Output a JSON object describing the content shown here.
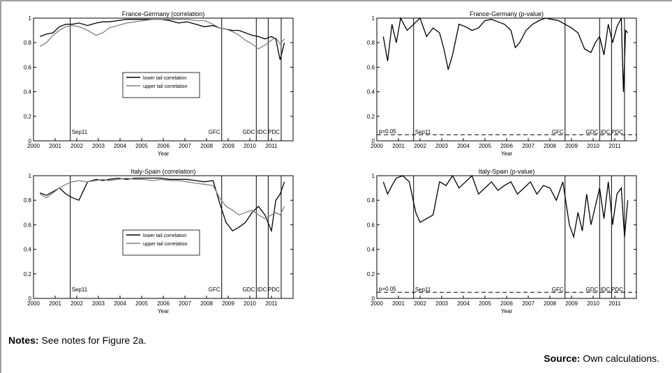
{
  "notes": {
    "label": "Notes:",
    "text": " See notes for Figure 2a."
  },
  "source": {
    "label": "Source:",
    "text": " Own calculations."
  },
  "chart_data": [
    {
      "type": "line",
      "title": "France-Germany (correlation)",
      "xlabel": "Year",
      "xlim": [
        2000,
        2012
      ],
      "ylim": [
        0,
        1
      ],
      "xticks": [
        2000,
        2001,
        2002,
        2003,
        2004,
        2005,
        2006,
        2007,
        2008,
        2009,
        2010,
        2011
      ],
      "yticks": [
        0,
        0.2,
        0.4,
        0.6,
        0.8,
        1
      ],
      "legend": "center",
      "events": [
        {
          "label": "Sep11",
          "x": 2001.7
        },
        {
          "label": "GFC",
          "x": 2008.7
        },
        {
          "label": "GDC",
          "x": 2010.3
        },
        {
          "label": "IDC",
          "x": 2010.85
        },
        {
          "label": "PDC",
          "x": 2011.45
        }
      ],
      "series": [
        {
          "name": "lower tail correlation",
          "color": "#000000",
          "x": [
            2000.3,
            2000.6,
            2000.9,
            2001.2,
            2001.5,
            2001.8,
            2002.1,
            2002.5,
            2002.9,
            2003.2,
            2003.5,
            2003.9,
            2004.3,
            2004.7,
            2005.1,
            2005.5,
            2005.9,
            2006.3,
            2006.7,
            2007.1,
            2007.5,
            2007.9,
            2008.3,
            2008.6,
            2008.9,
            2009.2,
            2009.5,
            2009.8,
            2010.1,
            2010.4,
            2010.7,
            2011.0,
            2011.2,
            2011.4,
            2011.6
          ],
          "y": [
            0.85,
            0.87,
            0.88,
            0.93,
            0.95,
            0.95,
            0.96,
            0.94,
            0.96,
            0.97,
            0.97,
            0.98,
            0.99,
            0.99,
            0.99,
            0.99,
            0.99,
            0.98,
            0.96,
            0.97,
            0.95,
            0.93,
            0.94,
            0.92,
            0.91,
            0.9,
            0.9,
            0.88,
            0.86,
            0.85,
            0.83,
            0.85,
            0.83,
            0.66,
            0.8
          ]
        },
        {
          "name": "upper tail correlation",
          "color": "#808080",
          "x": [
            2000.3,
            2000.6,
            2000.9,
            2001.2,
            2001.5,
            2001.8,
            2002.1,
            2002.5,
            2002.9,
            2003.2,
            2003.5,
            2003.9,
            2004.3,
            2004.7,
            2005.1,
            2005.5,
            2005.9,
            2006.3,
            2006.7,
            2007.1,
            2007.5,
            2007.9,
            2008.3,
            2008.6,
            2008.9,
            2009.2,
            2009.5,
            2009.8,
            2010.1,
            2010.4,
            2010.7,
            2011.0,
            2011.2,
            2011.4,
            2011.6
          ],
          "y": [
            0.77,
            0.8,
            0.86,
            0.9,
            0.93,
            0.94,
            0.93,
            0.9,
            0.86,
            0.88,
            0.92,
            0.94,
            0.96,
            0.97,
            0.98,
            0.99,
            0.99,
            0.99,
            0.99,
            0.99,
            0.98,
            0.98,
            0.95,
            0.92,
            0.91,
            0.89,
            0.86,
            0.82,
            0.79,
            0.75,
            0.78,
            0.82,
            0.84,
            0.79,
            0.83
          ]
        }
      ]
    },
    {
      "type": "line",
      "title": "France-Germany (p-value)",
      "xlabel": "Year",
      "xlim": [
        2000,
        2012
      ],
      "ylim": [
        0,
        1
      ],
      "xticks": [
        2000,
        2001,
        2002,
        2003,
        2004,
        2005,
        2006,
        2007,
        2008,
        2009,
        2010,
        2011
      ],
      "yticks": [
        0,
        0.2,
        0.4,
        0.6,
        0.8,
        1
      ],
      "threshold": {
        "label": "p=0.05",
        "y": 0.05
      },
      "events": [
        {
          "label": "Sep11",
          "x": 2001.7
        },
        {
          "label": "GFC",
          "x": 2008.7
        },
        {
          "label": "GDC",
          "x": 2010.3
        },
        {
          "label": "IDC",
          "x": 2010.85
        },
        {
          "label": "PDC",
          "x": 2011.45
        }
      ],
      "series": [
        {
          "name": "",
          "color": "#000000",
          "x": [
            2000.3,
            2000.5,
            2000.7,
            2000.9,
            2001.1,
            2001.4,
            2001.7,
            2002.0,
            2002.3,
            2002.6,
            2002.9,
            2003.1,
            2003.3,
            2003.5,
            2003.8,
            2004.1,
            2004.4,
            2004.7,
            2005.0,
            2005.3,
            2005.6,
            2005.9,
            2006.2,
            2006.4,
            2006.6,
            2006.9,
            2007.2,
            2007.5,
            2007.8,
            2008.1,
            2008.4,
            2008.7,
            2009.0,
            2009.3,
            2009.6,
            2009.9,
            2010.1,
            2010.3,
            2010.5,
            2010.7,
            2010.9,
            2011.1,
            2011.3,
            2011.4,
            2011.5,
            2011.6
          ],
          "y": [
            0.85,
            0.65,
            0.95,
            0.8,
            1.0,
            0.9,
            0.95,
            1.0,
            0.85,
            0.92,
            0.88,
            0.75,
            0.58,
            0.7,
            0.95,
            0.93,
            0.9,
            0.92,
            0.98,
            0.99,
            0.97,
            0.95,
            0.9,
            0.76,
            0.8,
            0.9,
            0.95,
            0.98,
            1.0,
            0.99,
            0.98,
            0.95,
            0.92,
            0.88,
            0.75,
            0.72,
            0.8,
            0.85,
            0.7,
            0.95,
            0.8,
            0.93,
            1.0,
            0.4,
            0.9,
            0.88
          ]
        }
      ]
    },
    {
      "type": "line",
      "title": "Italy-Spain (correlation)",
      "xlabel": "Year",
      "xlim": [
        2000,
        2012
      ],
      "ylim": [
        0,
        1
      ],
      "xticks": [
        2000,
        2001,
        2002,
        2003,
        2004,
        2005,
        2006,
        2007,
        2008,
        2009,
        2010,
        2011
      ],
      "yticks": [
        0,
        0.2,
        0.4,
        0.6,
        0.8,
        1
      ],
      "legend": "center",
      "events": [
        {
          "label": "Sep11",
          "x": 2001.7
        },
        {
          "label": "GFC",
          "x": 2008.7
        },
        {
          "label": "GDC",
          "x": 2010.3
        },
        {
          "label": "IDC",
          "x": 2010.85
        },
        {
          "label": "PDC",
          "x": 2011.45
        }
      ],
      "series": [
        {
          "name": "lower tail correlation",
          "color": "#000000",
          "x": [
            2000.3,
            2000.6,
            2000.9,
            2001.2,
            2001.5,
            2001.8,
            2002.1,
            2002.5,
            2002.9,
            2003.2,
            2003.5,
            2003.9,
            2004.3,
            2004.7,
            2005.1,
            2005.5,
            2005.9,
            2006.3,
            2006.7,
            2007.1,
            2007.5,
            2007.9,
            2008.3,
            2008.6,
            2008.9,
            2009.2,
            2009.5,
            2009.8,
            2010.1,
            2010.4,
            2010.7,
            2011.0,
            2011.2,
            2011.4,
            2011.6
          ],
          "y": [
            0.86,
            0.84,
            0.87,
            0.9,
            0.85,
            0.82,
            0.8,
            0.95,
            0.97,
            0.96,
            0.97,
            0.98,
            0.97,
            0.98,
            0.98,
            0.98,
            0.98,
            0.97,
            0.97,
            0.97,
            0.96,
            0.95,
            0.96,
            0.78,
            0.62,
            0.55,
            0.58,
            0.62,
            0.7,
            0.75,
            0.68,
            0.55,
            0.8,
            0.85,
            0.95
          ]
        },
        {
          "name": "upper tail correlation",
          "color": "#808080",
          "x": [
            2000.3,
            2000.6,
            2000.9,
            2001.2,
            2001.5,
            2001.8,
            2002.1,
            2002.5,
            2002.9,
            2003.2,
            2003.5,
            2003.9,
            2004.3,
            2004.7,
            2005.1,
            2005.5,
            2005.9,
            2006.3,
            2006.7,
            2007.1,
            2007.5,
            2007.9,
            2008.3,
            2008.6,
            2008.9,
            2009.2,
            2009.5,
            2009.8,
            2010.1,
            2010.4,
            2010.7,
            2011.0,
            2011.2,
            2011.4,
            2011.6
          ],
          "y": [
            0.85,
            0.82,
            0.86,
            0.9,
            0.93,
            0.95,
            0.96,
            0.95,
            0.96,
            0.97,
            0.96,
            0.97,
            0.98,
            0.97,
            0.97,
            0.96,
            0.97,
            0.96,
            0.96,
            0.95,
            0.94,
            0.93,
            0.92,
            0.82,
            0.75,
            0.72,
            0.68,
            0.7,
            0.72,
            0.68,
            0.65,
            0.68,
            0.7,
            0.68,
            0.75
          ]
        }
      ]
    },
    {
      "type": "line",
      "title": "Italy-Spain (p-value)",
      "xlabel": "Year",
      "xlim": [
        2000,
        2012
      ],
      "ylim": [
        0,
        1
      ],
      "xticks": [
        2000,
        2001,
        2002,
        2003,
        2004,
        2005,
        2006,
        2007,
        2008,
        2009,
        2010,
        2011
      ],
      "yticks": [
        0,
        0.2,
        0.4,
        0.6,
        0.8,
        1
      ],
      "threshold": {
        "label": "p=0.05",
        "y": 0.05
      },
      "events": [
        {
          "label": "Sep11",
          "x": 2001.7
        },
        {
          "label": "GFC",
          "x": 2008.7
        },
        {
          "label": "GDC",
          "x": 2010.3
        },
        {
          "label": "IDC",
          "x": 2010.85
        },
        {
          "label": "PDC",
          "x": 2011.45
        }
      ],
      "series": [
        {
          "name": "",
          "color": "#000000",
          "x": [
            2000.3,
            2000.5,
            2000.7,
            2000.9,
            2001.2,
            2001.5,
            2001.8,
            2002.0,
            2002.3,
            2002.6,
            2002.9,
            2003.2,
            2003.5,
            2003.8,
            2004.1,
            2004.4,
            2004.7,
            2005.0,
            2005.3,
            2005.6,
            2005.9,
            2006.2,
            2006.5,
            2006.8,
            2007.1,
            2007.4,
            2007.7,
            2008.0,
            2008.3,
            2008.6,
            2008.9,
            2009.1,
            2009.3,
            2009.5,
            2009.7,
            2009.9,
            2010.1,
            2010.3,
            2010.5,
            2010.7,
            2010.9,
            2011.1,
            2011.3,
            2011.45,
            2011.6
          ],
          "y": [
            0.95,
            0.85,
            0.92,
            0.98,
            1.0,
            0.95,
            0.7,
            0.62,
            0.65,
            0.68,
            0.95,
            0.92,
            1.0,
            0.9,
            0.95,
            1.0,
            0.85,
            0.9,
            0.95,
            0.88,
            0.92,
            0.95,
            0.85,
            0.9,
            0.95,
            0.85,
            0.92,
            0.9,
            0.8,
            0.95,
            0.6,
            0.5,
            0.7,
            0.55,
            0.85,
            0.6,
            0.75,
            0.9,
            0.65,
            0.95,
            0.6,
            0.85,
            0.9,
            0.5,
            0.8
          ]
        }
      ]
    }
  ]
}
